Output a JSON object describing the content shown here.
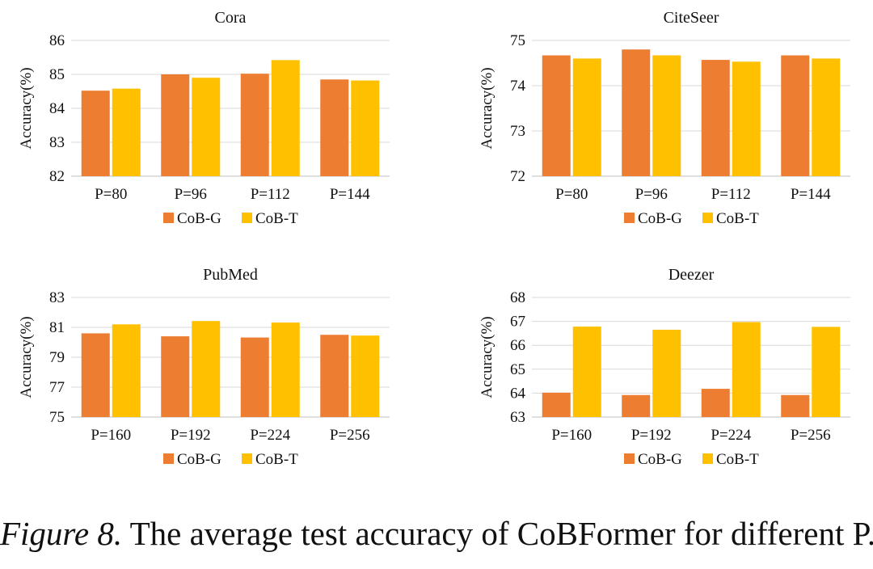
{
  "colors": {
    "cobg": "#ed7d31",
    "cobt": "#ffc000",
    "grid": "#d9d9d9"
  },
  "caption": {
    "label": "Figure 8.",
    "text": " The average test accuracy of CoBFormer for different P."
  },
  "chart_data": [
    {
      "type": "bar",
      "title": "Cora",
      "ylabel": "Accuracy(%)",
      "ylim": [
        82,
        86
      ],
      "yticks": [
        "82",
        "83",
        "84",
        "85",
        "86"
      ],
      "categories": [
        "P=80",
        "P=96",
        "P=112",
        "P=144"
      ],
      "series": [
        {
          "name": "CoB-G",
          "values": [
            84.52,
            85.0,
            85.02,
            84.85
          ]
        },
        {
          "name": "CoB-T",
          "values": [
            84.58,
            84.9,
            85.42,
            84.82
          ]
        }
      ],
      "grid": true,
      "legend": "bottom"
    },
    {
      "type": "bar",
      "title": "CiteSeer",
      "ylabel": "Accuracy(%)",
      "ylim": [
        72,
        75
      ],
      "yticks": [
        "72",
        "73",
        "74",
        "75"
      ],
      "categories": [
        "P=80",
        "P=96",
        "P=112",
        "P=144"
      ],
      "series": [
        {
          "name": "CoB-G",
          "values": [
            74.67,
            74.8,
            74.57,
            74.67
          ]
        },
        {
          "name": "CoB-T",
          "values": [
            74.6,
            74.67,
            74.53,
            74.6
          ]
        }
      ],
      "grid": true,
      "legend": "bottom"
    },
    {
      "type": "bar",
      "title": "PubMed",
      "ylabel": "Accuracy(%)",
      "ylim": [
        75,
        83
      ],
      "yticks": [
        "75",
        "77",
        "79",
        "81",
        "83"
      ],
      "categories": [
        "P=160",
        "P=192",
        "P=224",
        "P=256"
      ],
      "series": [
        {
          "name": "CoB-G",
          "values": [
            80.6,
            80.4,
            80.32,
            80.5
          ]
        },
        {
          "name": "CoB-T",
          "values": [
            81.2,
            81.42,
            81.32,
            80.45
          ]
        }
      ],
      "grid": true,
      "legend": "bottom"
    },
    {
      "type": "bar",
      "title": "Deezer",
      "ylabel": "Accuracy(%)",
      "ylim": [
        63,
        68
      ],
      "yticks": [
        "63",
        "64",
        "65",
        "66",
        "67",
        "68"
      ],
      "categories": [
        "P=160",
        "P=192",
        "P=224",
        "P=256"
      ],
      "series": [
        {
          "name": "CoB-G",
          "values": [
            64.02,
            63.92,
            64.18,
            63.92
          ]
        },
        {
          "name": "CoB-T",
          "values": [
            66.78,
            66.65,
            66.97,
            66.77
          ]
        }
      ],
      "grid": true,
      "legend": "bottom"
    }
  ]
}
